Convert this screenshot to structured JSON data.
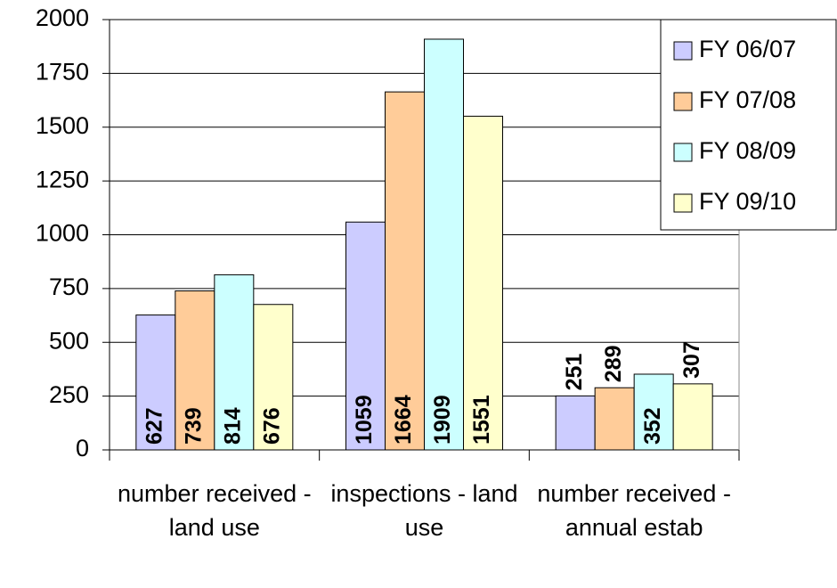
{
  "chart_data": {
    "type": "bar",
    "categories": [
      "number received - land use",
      "inspections - land use",
      "number received - annual estab"
    ],
    "series": [
      {
        "name": "FY 06/07",
        "color": "#ccccff",
        "values": [
          627,
          1059,
          251
        ]
      },
      {
        "name": "FY 07/08",
        "color": "#ffcc99",
        "values": [
          739,
          1664,
          289
        ]
      },
      {
        "name": "FY 08/09",
        "color": "#ccffff",
        "values": [
          814,
          1909,
          352
        ]
      },
      {
        "name": "FY 09/10",
        "color": "#ffffcc",
        "values": [
          676,
          1551,
          307
        ]
      }
    ],
    "ylim": [
      0,
      2000
    ],
    "yticks": [
      0,
      250,
      500,
      750,
      1000,
      1250,
      1500,
      1750,
      2000
    ],
    "grid": true,
    "legend": "top-right"
  }
}
